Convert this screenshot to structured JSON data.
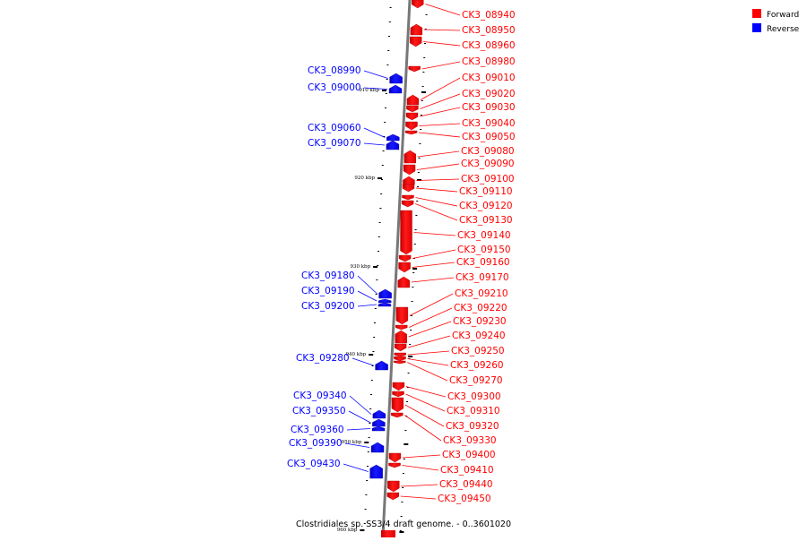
{
  "title": "Clostridiales sp. SS3/4 draft genome. - 0..3601020",
  "legend": {
    "forward": {
      "label": "Forward",
      "color": "#ff0000"
    },
    "reverse": {
      "label": "Reverse",
      "color": "#0000ff"
    }
  },
  "axis_ticks": [
    "910 kbp",
    "920 kbp",
    "930 kbp",
    "940 kbp",
    "950 kbp",
    "960 kbp"
  ],
  "genes": [
    {
      "id": "CK3_08940",
      "strand": "forward"
    },
    {
      "id": "CK3_08950",
      "strand": "forward"
    },
    {
      "id": "CK3_08960",
      "strand": "forward"
    },
    {
      "id": "CK3_08980",
      "strand": "forward"
    },
    {
      "id": "CK3_08990",
      "strand": "reverse"
    },
    {
      "id": "CK3_09000",
      "strand": "reverse"
    },
    {
      "id": "CK3_09010",
      "strand": "forward"
    },
    {
      "id": "CK3_09020",
      "strand": "forward"
    },
    {
      "id": "CK3_09030",
      "strand": "forward"
    },
    {
      "id": "CK3_09040",
      "strand": "forward"
    },
    {
      "id": "CK3_09050",
      "strand": "forward"
    },
    {
      "id": "CK3_09060",
      "strand": "reverse"
    },
    {
      "id": "CK3_09070",
      "strand": "reverse"
    },
    {
      "id": "CK3_09080",
      "strand": "forward"
    },
    {
      "id": "CK3_09090",
      "strand": "forward"
    },
    {
      "id": "CK3_09100",
      "strand": "forward"
    },
    {
      "id": "CK3_09110",
      "strand": "forward"
    },
    {
      "id": "CK3_09120",
      "strand": "forward"
    },
    {
      "id": "CK3_09130",
      "strand": "forward"
    },
    {
      "id": "CK3_09140",
      "strand": "forward"
    },
    {
      "id": "CK3_09150",
      "strand": "forward"
    },
    {
      "id": "CK3_09160",
      "strand": "forward"
    },
    {
      "id": "CK3_09170",
      "strand": "forward"
    },
    {
      "id": "CK3_09180",
      "strand": "reverse"
    },
    {
      "id": "CK3_09190",
      "strand": "reverse"
    },
    {
      "id": "CK3_09200",
      "strand": "reverse"
    },
    {
      "id": "CK3_09210",
      "strand": "forward"
    },
    {
      "id": "CK3_09220",
      "strand": "forward"
    },
    {
      "id": "CK3_09230",
      "strand": "forward"
    },
    {
      "id": "CK3_09240",
      "strand": "forward"
    },
    {
      "id": "CK3_09250",
      "strand": "forward"
    },
    {
      "id": "CK3_09260",
      "strand": "forward"
    },
    {
      "id": "CK3_09270",
      "strand": "forward"
    },
    {
      "id": "CK3_09280",
      "strand": "reverse"
    },
    {
      "id": "CK3_09300",
      "strand": "forward"
    },
    {
      "id": "CK3_09310",
      "strand": "forward"
    },
    {
      "id": "CK3_09320",
      "strand": "forward"
    },
    {
      "id": "CK3_09330",
      "strand": "forward"
    },
    {
      "id": "CK3_09340",
      "strand": "reverse"
    },
    {
      "id": "CK3_09350",
      "strand": "reverse"
    },
    {
      "id": "CK3_09360",
      "strand": "reverse"
    },
    {
      "id": "CK3_09390",
      "strand": "reverse"
    },
    {
      "id": "CK3_09400",
      "strand": "forward"
    },
    {
      "id": "CK3_09410",
      "strand": "forward"
    },
    {
      "id": "CK3_09430",
      "strand": "reverse"
    },
    {
      "id": "CK3_09440",
      "strand": "forward"
    },
    {
      "id": "CK3_09450",
      "strand": "forward"
    }
  ]
}
